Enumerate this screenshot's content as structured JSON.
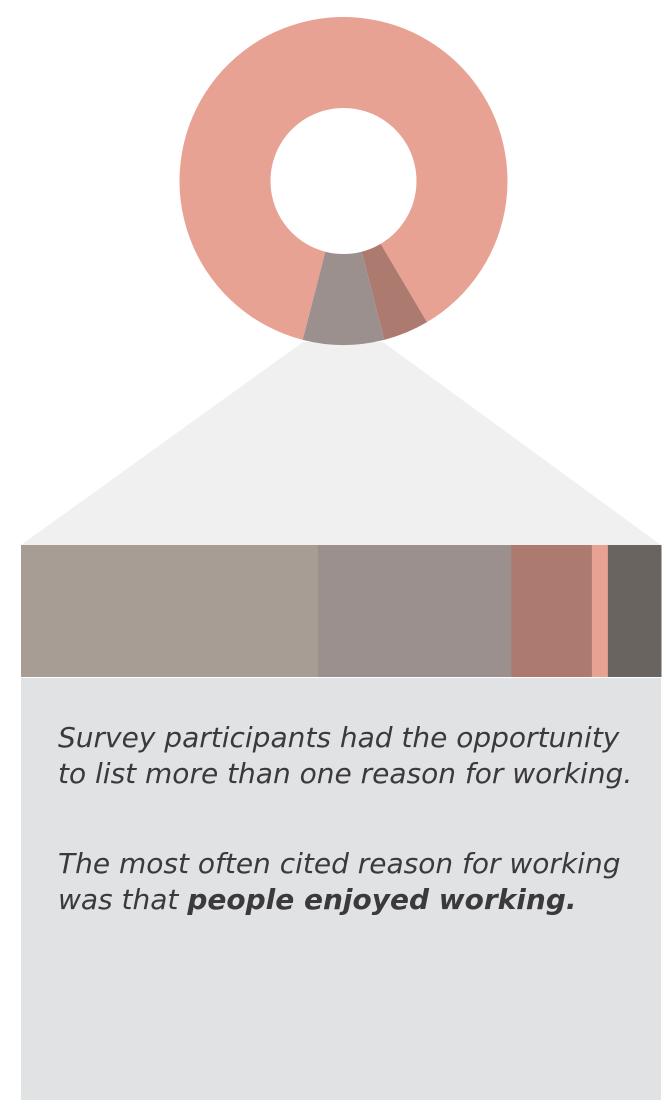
{
  "chart_data": [
    {
      "type": "pie",
      "style": "donut",
      "slices": [
        {
          "value": 87.5,
          "color": "#e8a294"
        },
        {
          "value": 4.5,
          "color": "#ac7a6e"
        },
        {
          "value": 8.0,
          "color": "#9b908e"
        }
      ]
    },
    {
      "type": "bar",
      "style": "stacked-horizontal-100",
      "segments": [
        {
          "value": 46.4,
          "color": "#a79d94"
        },
        {
          "value": 30.2,
          "color": "#9b908e"
        },
        {
          "value": 12.6,
          "color": "#ac7a6e"
        },
        {
          "value": 2.5,
          "color": "#e8a294"
        },
        {
          "value": 8.3,
          "color": "#6a6461"
        }
      ]
    }
  ],
  "colors": {
    "callout": "#f0f0f0",
    "panel": "#e1e2e4",
    "text": "#3a3a3c"
  },
  "text": {
    "paragraph_1": "Survey participants had the opportunity to list more than one reason for working.",
    "paragraph_2_lead": "The most often cited reason for working was that ",
    "paragraph_2_emphasis": "people enjoyed working."
  }
}
